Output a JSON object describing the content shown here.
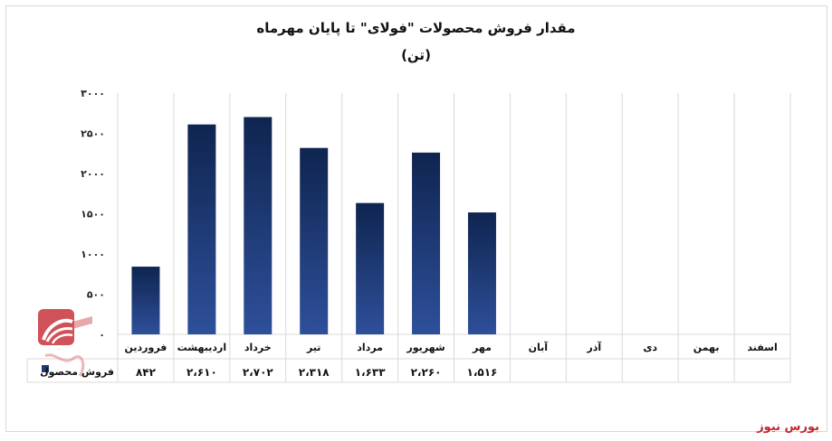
{
  "chart_data": {
    "type": "bar",
    "title": "مقدار فروش محصولات \"فولای\" تا پایان مهرماه",
    "subtitle": "(تن)",
    "categories": [
      "فروردین",
      "اردیبهشت",
      "خرداد",
      "تیر",
      "مرداد",
      "شهریور",
      "مهر",
      "آبان",
      "آذر",
      "دی",
      "بهمن",
      "اسفند"
    ],
    "series": [
      {
        "name": "فروش محصول",
        "values": [
          842,
          2610,
          2702,
          2318,
          1633,
          2260,
          1516,
          null,
          null,
          null,
          null,
          null
        ],
        "labels": [
          "۸۴۲",
          "۲،۶۱۰",
          "۲،۷۰۲",
          "۲،۳۱۸",
          "۱،۶۳۳",
          "۲،۲۶۰",
          "۱،۵۱۶",
          "",
          "",
          "",
          "",
          ""
        ]
      }
    ],
    "ylim": [
      0,
      3000
    ],
    "yticks": [
      0,
      500,
      1000,
      1500,
      2000,
      2500,
      3000
    ],
    "ytick_labels": [
      "۰",
      "۵۰۰",
      "۱۰۰۰",
      "۱۵۰۰",
      "۲۰۰۰",
      "۲۵۰۰",
      "۳۰۰۰"
    ],
    "grid": true,
    "legend": "data-table-left",
    "colors": {
      "bar_top": "#0f2550",
      "bar_bottom": "#2e4f9a",
      "grid": "#d9d9d9",
      "legend_key": "#1e3a78"
    }
  },
  "brand": "بورس نیوز"
}
